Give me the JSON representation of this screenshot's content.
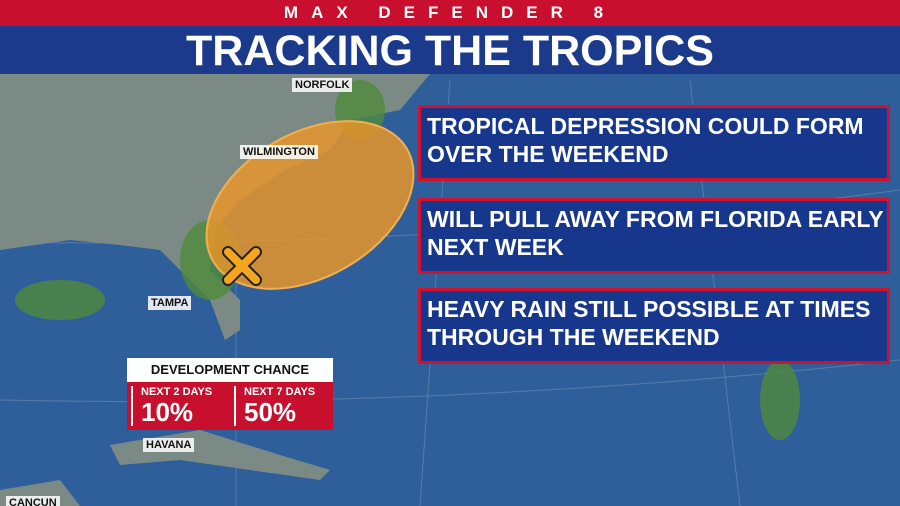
{
  "header": {
    "brand": "MAX DEFENDER 8",
    "title": "TRACKING THE TROPICS"
  },
  "map_labels": [
    "NORFOLK",
    "WILMINGTON",
    "TAMPA",
    "HAVANA",
    "CANCUN"
  ],
  "bullets": [
    "TROPICAL DEPRESSION COULD FORM OVER THE WEEKEND",
    "WILL PULL AWAY FROM FLORIDA EARLY NEXT WEEK",
    "HEAVY RAIN STILL POSSIBLE AT TIMES THROUGH THE WEEKEND"
  ],
  "development": {
    "title": "DEVELOPMENT CHANCE",
    "items": [
      {
        "label": "NEXT 2 DAYS",
        "value": "10%"
      },
      {
        "label": "NEXT 7 DAYS",
        "value": "50%"
      }
    ]
  }
}
